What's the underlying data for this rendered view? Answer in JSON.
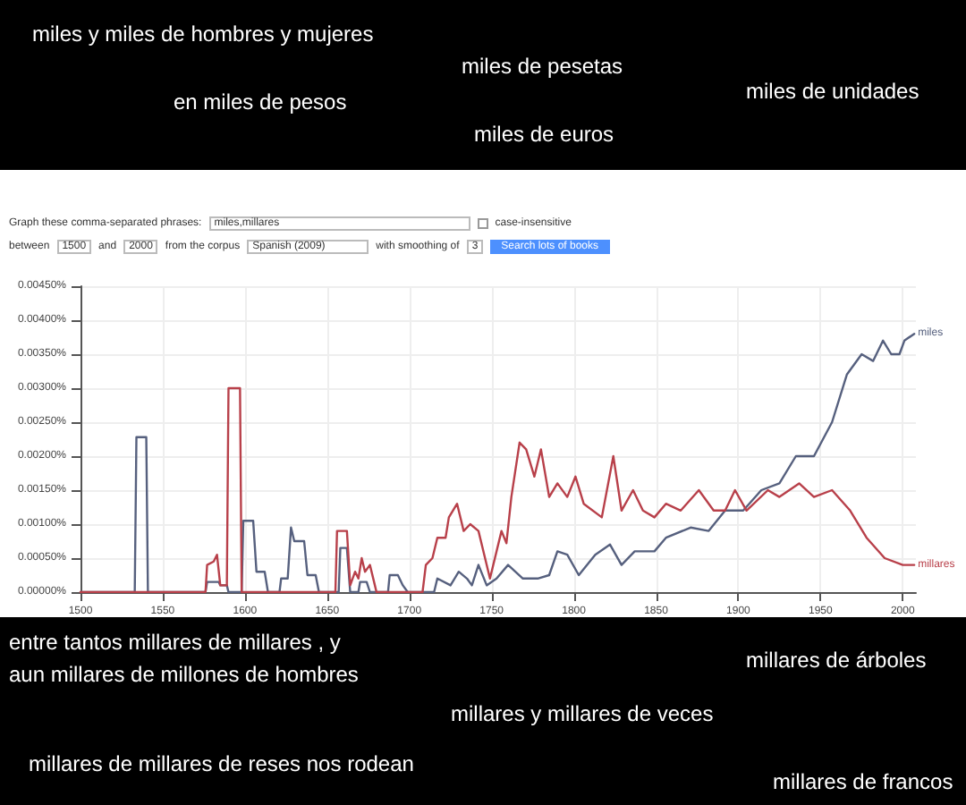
{
  "chart_data": {
    "type": "line",
    "annotations": [
      "miles y miles de hombres y mujeres",
      "miles de pesetas",
      "en miles de pesos",
      "miles de unidades",
      "miles de euros",
      "Graph these comma-separated phrases:",
      "miles,millares",
      "case-insensitive",
      "between",
      "1500",
      "and",
      "2000",
      "from the corpus",
      "Spanish (2009)",
      "with smoothing of",
      "3",
      "Search lots of books",
      "entre tantos millares de millares , y",
      "aun millares de millones de hombres",
      "millares de árboles",
      "millares y millares de veces",
      "millares de millares de reses nos rodean",
      "millares de francos"
    ],
    "xlim": [
      1500,
      2008
    ],
    "xticks": [
      1500,
      1550,
      1600,
      1650,
      1700,
      1750,
      1800,
      1850,
      1900,
      1950,
      2000
    ],
    "ylim": [
      0,
      0.0045
    ],
    "yticks": [
      {
        "value": 0,
        "label": "0.00000%"
      },
      {
        "value": 0.0005,
        "label": "0.00050%"
      },
      {
        "value": 0.001,
        "label": "0.00100%"
      },
      {
        "value": 0.0015,
        "label": "0.00150%"
      },
      {
        "value": 0.002,
        "label": "0.00200%"
      },
      {
        "value": 0.0025,
        "label": "0.00250%"
      },
      {
        "value": 0.003,
        "label": "0.00300%"
      },
      {
        "value": 0.0035,
        "label": "0.00350%"
      },
      {
        "value": 0.004,
        "label": "0.00400%"
      },
      {
        "value": 0.0045,
        "label": "0.00450%"
      }
    ],
    "grid": true,
    "marker": "none",
    "line_style": "solid",
    "series": [
      {
        "name": "miles",
        "color": "#56607e",
        "x": [
          1500,
          1533,
          1534,
          1540,
          1541,
          1576,
          1577,
          1584,
          1585,
          1589,
          1590,
          1598,
          1599,
          1605,
          1607,
          1612,
          1614,
          1621,
          1622,
          1626,
          1628,
          1630,
          1636,
          1638,
          1643,
          1645,
          1657,
          1658,
          1662,
          1664,
          1669,
          1670,
          1674,
          1676,
          1687,
          1688,
          1693,
          1696,
          1699,
          1715,
          1717,
          1725,
          1730,
          1735,
          1738,
          1742,
          1747,
          1753,
          1760,
          1769,
          1778,
          1785,
          1790,
          1796,
          1803,
          1813,
          1822,
          1829,
          1837,
          1849,
          1856,
          1871,
          1882,
          1892,
          1903,
          1914,
          1925,
          1935,
          1946,
          1957,
          1966,
          1975,
          1982,
          1988,
          1993,
          1998,
          2001,
          2007
        ],
        "values": [
          0,
          0,
          0.00228,
          0.00228,
          0,
          0,
          0.00015,
          0.00015,
          0.0001,
          0.0001,
          0,
          0,
          0.00105,
          0.00105,
          0.0003,
          0.0003,
          0,
          0,
          0.0002,
          0.0002,
          0.00095,
          0.00075,
          0.00075,
          0.00025,
          0.00025,
          0,
          0,
          0.00065,
          0.00065,
          0,
          0,
          0.00015,
          0.00015,
          0,
          0,
          0.00025,
          0.00025,
          0.0001,
          0,
          0,
          0.0002,
          0.0001,
          0.0003,
          0.0002,
          0.0001,
          0.0004,
          0.0001,
          0.0002,
          0.0004,
          0.0002,
          0.0002,
          0.00025,
          0.0006,
          0.00055,
          0.00025,
          0.00055,
          0.0007,
          0.0004,
          0.0006,
          0.0006,
          0.0008,
          0.00095,
          0.0009,
          0.0012,
          0.0012,
          0.0015,
          0.0016,
          0.002,
          0.002,
          0.0025,
          0.0032,
          0.0035,
          0.0034,
          0.0037,
          0.0035,
          0.0035,
          0.0037,
          0.0038
        ]
      },
      {
        "name": "millares",
        "color": "#b8404a",
        "x": [
          1500,
          1576,
          1577,
          1581,
          1583,
          1585,
          1589,
          1590,
          1597,
          1598,
          1655,
          1656,
          1662,
          1664,
          1667,
          1669,
          1671,
          1673,
          1676,
          1679,
          1680,
          1708,
          1710,
          1714,
          1717,
          1722,
          1724,
          1729,
          1733,
          1737,
          1742,
          1749,
          1756,
          1759,
          1762,
          1767,
          1771,
          1776,
          1780,
          1785,
          1790,
          1796,
          1801,
          1806,
          1817,
          1824,
          1829,
          1836,
          1842,
          1849,
          1856,
          1865,
          1876,
          1885,
          1892,
          1898,
          1905,
          1918,
          1925,
          1937,
          1946,
          1957,
          1968,
          1978,
          1989,
          2000,
          2007
        ],
        "values": [
          0,
          0,
          0.0004,
          0.00045,
          0.00055,
          0.0001,
          0.0001,
          0.003,
          0.003,
          0,
          0,
          0.0009,
          0.0009,
          0.0001,
          0.0003,
          0.0002,
          0.0005,
          0.0003,
          0.0004,
          0.0001,
          0,
          0,
          0.0004,
          0.0005,
          0.0008,
          0.0008,
          0.0011,
          0.0013,
          0.0009,
          0.001,
          0.0009,
          0.0002,
          0.0009,
          0.00072,
          0.0014,
          0.0022,
          0.0021,
          0.0017,
          0.0021,
          0.0014,
          0.0016,
          0.0014,
          0.0017,
          0.0013,
          0.0011,
          0.002,
          0.0012,
          0.0015,
          0.0012,
          0.0011,
          0.0013,
          0.0012,
          0.0015,
          0.0012,
          0.0012,
          0.0015,
          0.0012,
          0.0015,
          0.0014,
          0.0016,
          0.0014,
          0.0015,
          0.0012,
          0.0008,
          0.0005,
          0.0004,
          0.0004
        ]
      }
    ]
  }
}
